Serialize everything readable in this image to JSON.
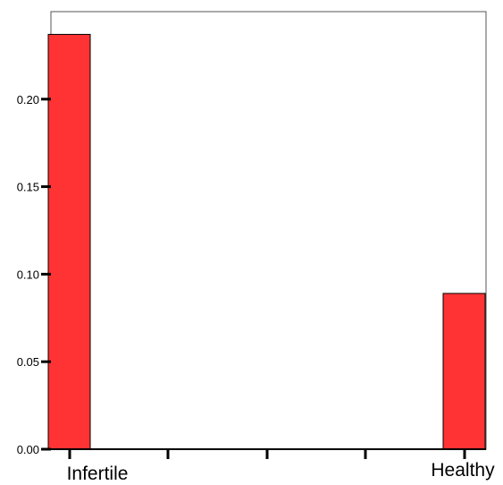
{
  "chart_data": {
    "type": "bar",
    "categories": [
      "Infertile",
      "Healthy"
    ],
    "values": [
      0.237,
      0.089
    ],
    "yticks": [
      "0.00",
      "0.05",
      "0.10",
      "0.15",
      "0.20"
    ],
    "ylim": [
      0,
      0.25
    ],
    "title": "",
    "xlabel": "",
    "ylabel": "",
    "grid": false,
    "legend": "none",
    "bar_color": "#ff3333",
    "bar_edge_color": "#000000",
    "axis_color": "#000000",
    "frame_color": "#555555"
  }
}
